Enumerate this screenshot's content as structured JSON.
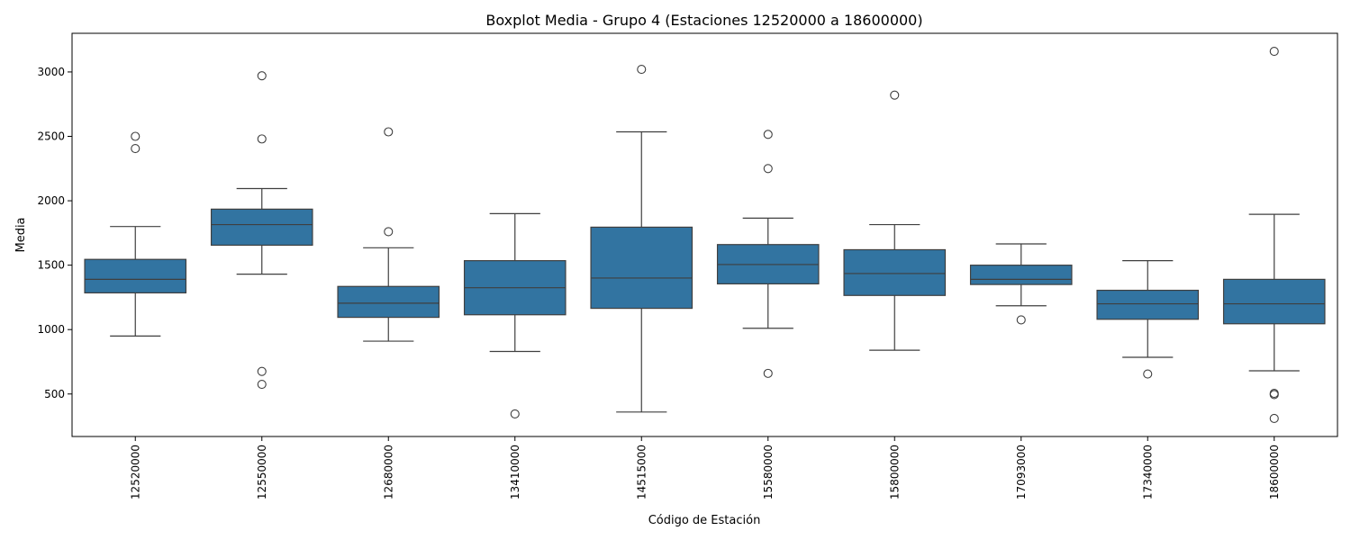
{
  "chart_data": {
    "type": "box",
    "title": "Boxplot Media - Grupo 4 (Estaciones 12520000 a 18600000)",
    "xlabel": "Código de Estación",
    "ylabel": "Media",
    "ylim": [
      170,
      3300
    ],
    "yticks": [
      500,
      1000,
      1500,
      2000,
      2500,
      3000
    ],
    "grid": false,
    "color": "#3274a1",
    "categories": [
      "12520000",
      "12550000",
      "12680000",
      "13410000",
      "14515000",
      "15580000",
      "15800000",
      "17093000",
      "17340000",
      "18600000"
    ],
    "boxes": [
      {
        "whisker_low": 950,
        "q1": 1285,
        "median": 1390,
        "q3": 1545,
        "whisker_high": 1800,
        "outliers": [
          2405,
          2500
        ]
      },
      {
        "whisker_low": 1430,
        "q1": 1655,
        "median": 1815,
        "q3": 1935,
        "whisker_high": 2095,
        "outliers": [
          575,
          675,
          2480,
          2970
        ]
      },
      {
        "whisker_low": 910,
        "q1": 1095,
        "median": 1205,
        "q3": 1335,
        "whisker_high": 1635,
        "outliers": [
          1760,
          2535
        ]
      },
      {
        "whisker_low": 830,
        "q1": 1115,
        "median": 1325,
        "q3": 1535,
        "whisker_high": 1900,
        "outliers": [
          345
        ]
      },
      {
        "whisker_low": 360,
        "q1": 1165,
        "median": 1400,
        "q3": 1795,
        "whisker_high": 2535,
        "outliers": [
          3020
        ]
      },
      {
        "whisker_low": 1010,
        "q1": 1355,
        "median": 1505,
        "q3": 1660,
        "whisker_high": 1865,
        "outliers": [
          660,
          2250,
          2515
        ]
      },
      {
        "whisker_low": 840,
        "q1": 1265,
        "median": 1435,
        "q3": 1620,
        "whisker_high": 1815,
        "outliers": [
          2820
        ]
      },
      {
        "whisker_low": 1185,
        "q1": 1350,
        "median": 1390,
        "q3": 1500,
        "whisker_high": 1665,
        "outliers": [
          1075
        ]
      },
      {
        "whisker_low": 785,
        "q1": 1080,
        "median": 1200,
        "q3": 1305,
        "whisker_high": 1535,
        "outliers": [
          655
        ]
      },
      {
        "whisker_low": 680,
        "q1": 1045,
        "median": 1200,
        "q3": 1390,
        "whisker_high": 1895,
        "outliers": [
          310,
          495,
          505,
          3160
        ]
      }
    ]
  }
}
